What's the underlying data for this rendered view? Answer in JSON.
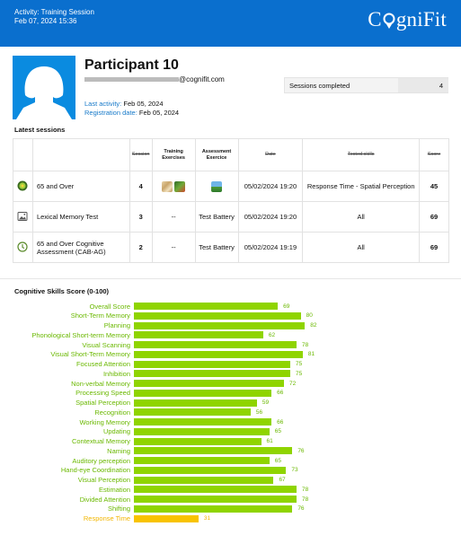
{
  "header": {
    "activity": "Activity: Training Session",
    "datetime": "Feb 07, 2024 15:36",
    "logo_part1": "C",
    "logo_part2": "gniFit"
  },
  "participant": {
    "name": "Participant 10",
    "email_suffix": "@cognifit.com",
    "last_activity_label": "Last activity:",
    "last_activity": "Feb 05, 2024",
    "registration_label": "Registration date:",
    "registration": "Feb 05, 2024"
  },
  "sessions_completed": {
    "label": "Sessions completed",
    "value": "4"
  },
  "latest_sessions": {
    "title": "Latest sessions",
    "headers": [
      "Session",
      "Training Exercises",
      "Assessment Exercice",
      "Date",
      "Tested skills",
      "Score"
    ],
    "rows": [
      {
        "name": "65 and Over",
        "session": "4",
        "training": "",
        "assessment": "",
        "date": "05/02/2024 19:20",
        "skills": "Response Time - Spatial Perception",
        "score": "45",
        "icon": "green-disc-icon"
      },
      {
        "name": "Lexical Memory Test",
        "session": "3",
        "training": "--",
        "assessment": "Test Battery",
        "date": "05/02/2024 19:20",
        "skills": "All",
        "score": "69",
        "icon": "image-icon"
      },
      {
        "name": "65 and Over Cognitive Assessment (CAB-AG)",
        "session": "2",
        "training": "--",
        "assessment": "Test Battery",
        "date": "05/02/2024 19:19",
        "skills": "All",
        "score": "69",
        "icon": "clock-icon"
      }
    ]
  },
  "chart_data": {
    "type": "bar",
    "title": "Cognitive Skills Score (0-100)",
    "orientation": "horizontal",
    "xlim": [
      0,
      100
    ],
    "categories": [
      "Overall Score",
      "Short-Term Memory",
      "Planning",
      "Phonological Short-term Memory",
      "Visual Scanning",
      "Visual Short-Term Memory",
      "Focused Attention",
      "Inhibition",
      "Non-verbal Memory",
      "Processing Speed",
      "Spatial Perception",
      "Recognition",
      "Working Memory",
      "Updating",
      "Contextual Memory",
      "Naming",
      "Auditory perception",
      "Hand-eye Coordination",
      "Visual Perception",
      "Estimation",
      "Divided Attention",
      "Shifting",
      "Response Time"
    ],
    "values": [
      69,
      80,
      82,
      62,
      78,
      81,
      75,
      75,
      72,
      66,
      59,
      56,
      66,
      65,
      61,
      76,
      65,
      73,
      67,
      78,
      78,
      76,
      31
    ],
    "colors": {
      "normal": "#8fd400",
      "low": "#f8c300",
      "normal_text": "#6ab800",
      "low_text": "#f2b600"
    }
  }
}
